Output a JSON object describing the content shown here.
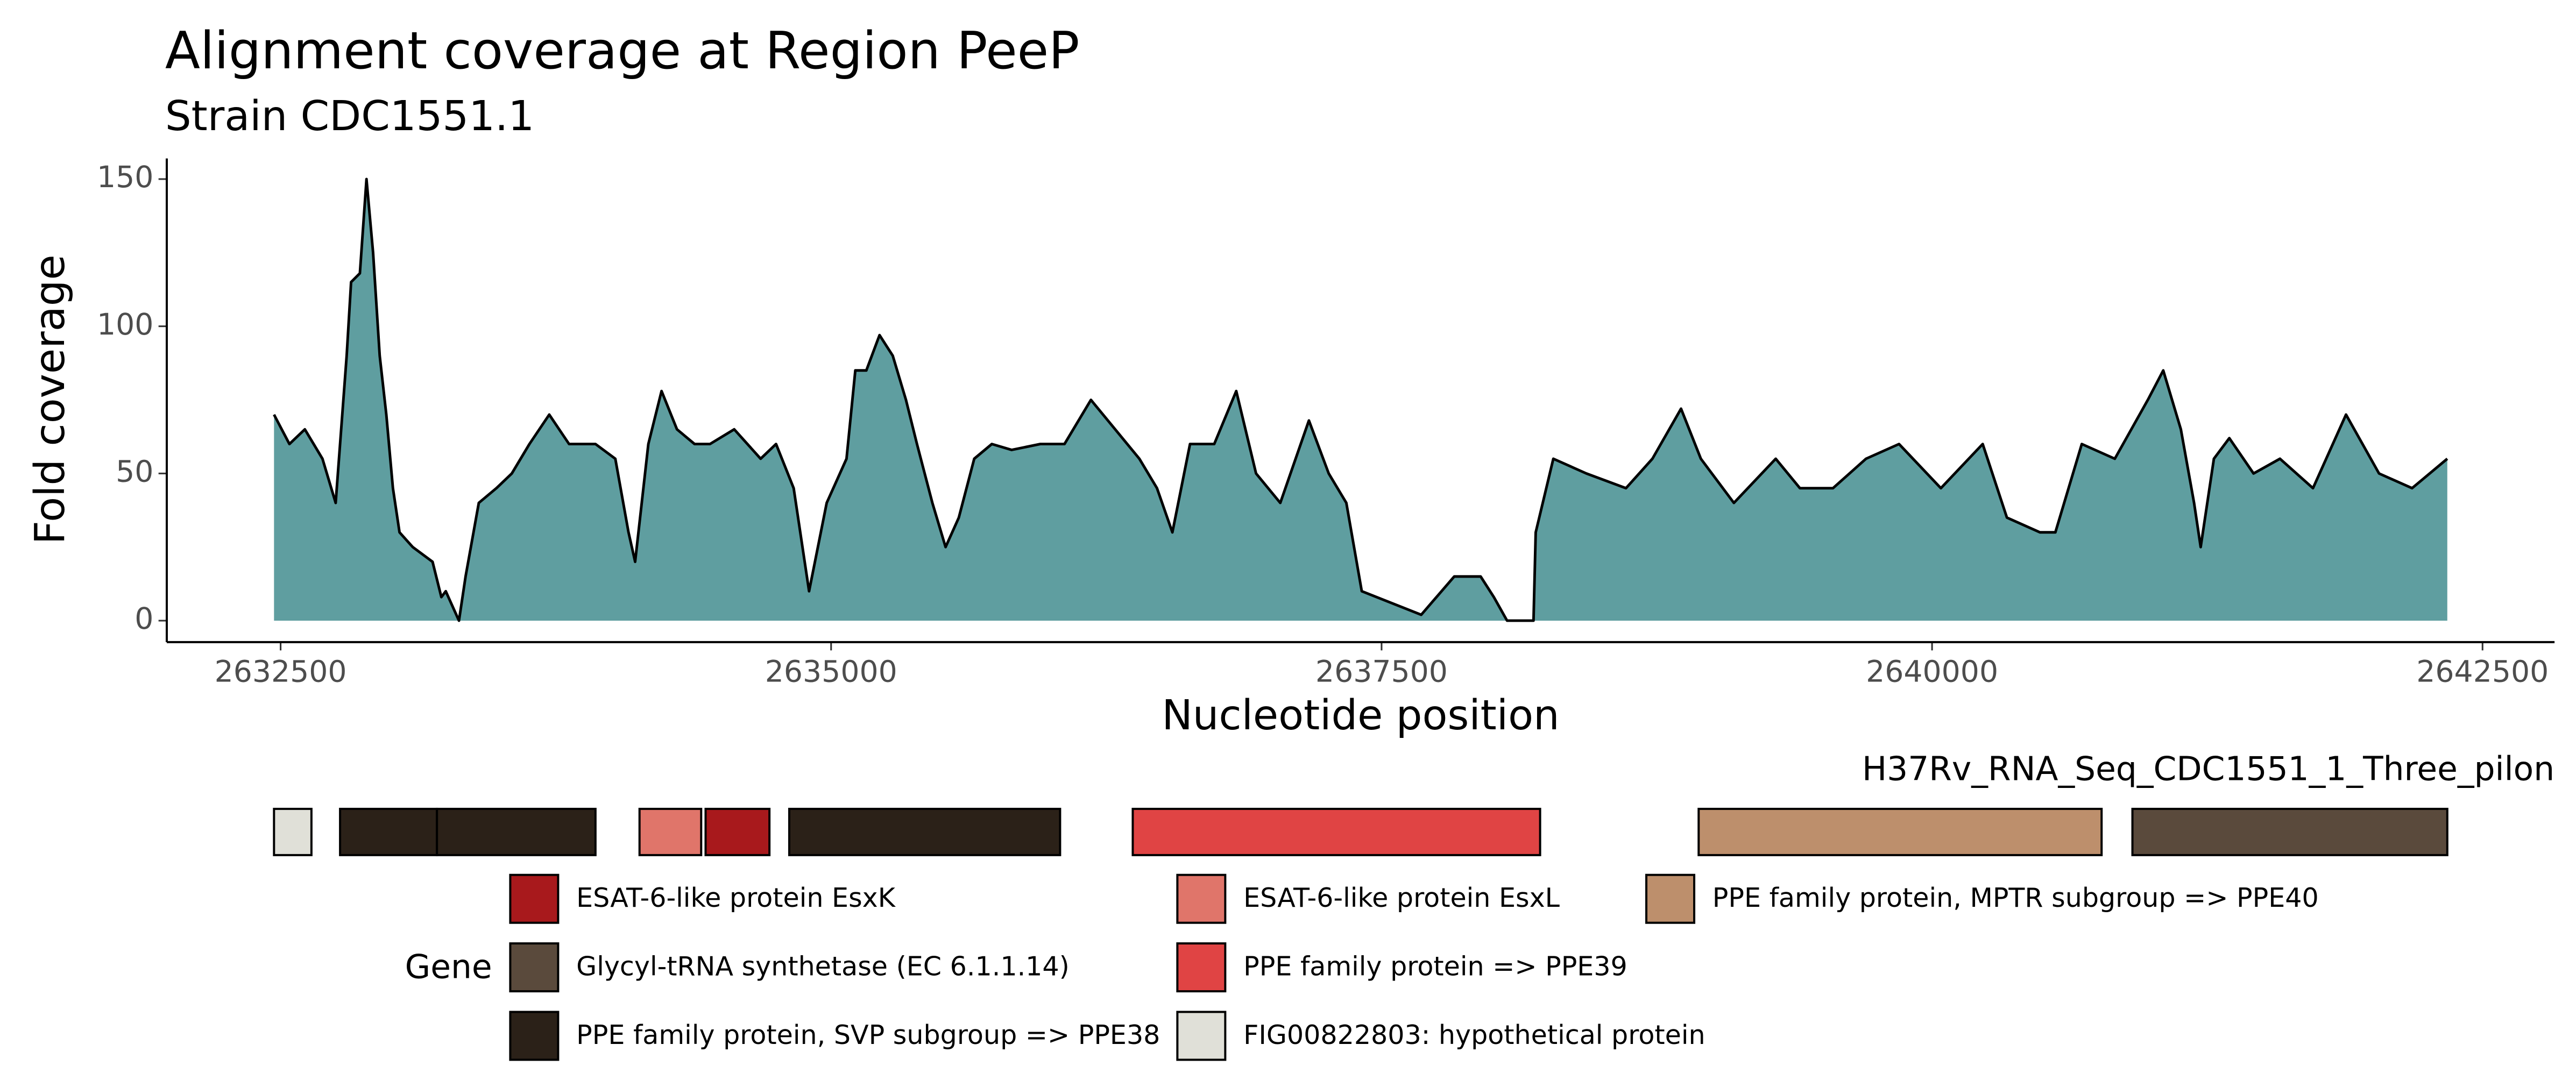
{
  "chart_data": [
    {
      "type": "area",
      "title": "Alignment coverage at Region PeeP",
      "subtitle": "Strain CDC1551.1",
      "x_label": "Nucleotide position",
      "y_label": "Fold coverage",
      "x": [
        2632470,
        2632540,
        2632610,
        2632690,
        2632750,
        2632800,
        2632820,
        2632860,
        2632890,
        2632920,
        2632950,
        2632980,
        2633010,
        2633040,
        2633100,
        2633190,
        2633230,
        2633250,
        2633310,
        2633340,
        2633400,
        2633480,
        2633550,
        2633630,
        2633720,
        2633810,
        2633930,
        2634020,
        2634080,
        2634110,
        2634170,
        2634230,
        2634300,
        2634380,
        2634450,
        2634560,
        2634680,
        2634750,
        2634830,
        2634900,
        2634980,
        2635070,
        2635110,
        2635160,
        2635220,
        2635280,
        2635340,
        2635390,
        2635460,
        2635520,
        2635580,
        2635650,
        2635730,
        2635820,
        2635950,
        2636060,
        2636180,
        2636290,
        2636400,
        2636480,
        2636550,
        2636630,
        2636740,
        2636840,
        2636930,
        2637040,
        2637170,
        2637260,
        2637340,
        2637410,
        2637680,
        2637830,
        2637950,
        2638010,
        2638070,
        2638190,
        2638200,
        2638280,
        2638430,
        2638610,
        2638730,
        2638860,
        2638950,
        2639100,
        2639290,
        2639400,
        2639550,
        2639700,
        2639850,
        2640040,
        2640230,
        2640340,
        2640490,
        2640560,
        2640680,
        2640830,
        2640980,
        2641050,
        2641130,
        2641190,
        2641220,
        2641280,
        2641350,
        2641460,
        2641580,
        2641730,
        2641880,
        2642030,
        2642180,
        2642340
      ],
      "series": [
        {
          "color": "#5f9ea0",
          "values": [
            70,
            60,
            65,
            55,
            40,
            90,
            115,
            118,
            150,
            125,
            90,
            70,
            45,
            30,
            25,
            20,
            8,
            10,
            0,
            15,
            40,
            45,
            50,
            60,
            70,
            60,
            60,
            55,
            30,
            20,
            60,
            78,
            65,
            60,
            60,
            65,
            55,
            60,
            45,
            10,
            40,
            55,
            85,
            85,
            97,
            90,
            75,
            60,
            40,
            25,
            35,
            55,
            60,
            58,
            60,
            60,
            75,
            65,
            55,
            45,
            30,
            60,
            60,
            78,
            50,
            40,
            68,
            50,
            40,
            10,
            2,
            15,
            15,
            8,
            0,
            0,
            30,
            55,
            50,
            45,
            55,
            72,
            55,
            40,
            55,
            45,
            45,
            55,
            60,
            45,
            60,
            35,
            30,
            30,
            60,
            55,
            75,
            85,
            65,
            40,
            25,
            55,
            62,
            50,
            55,
            45,
            70,
            50,
            45,
            55
          ]
        }
      ],
      "xlim": [
        2631983,
        2642827
      ],
      "ylim": [
        -7.3,
        157
      ],
      "xticks": [
        2632500,
        2635000,
        2637500,
        2640000,
        2642500
      ],
      "yticks": [
        0,
        50,
        100,
        150
      ]
    },
    {
      "type": "gene-track",
      "title": "H37Rv_RNA_Seq_CDC1551_1_Three_pilon",
      "legend_title": "Gene",
      "xlim": [
        2631983,
        2642827
      ],
      "series": [
        {
          "name": "ESAT-6-like protein EsxK",
          "color": "#a8191c",
          "spans": [
            [
              2634430,
              2634720
            ]
          ]
        },
        {
          "name": "Glycyl-tRNA synthetase (EC 6.1.1.14)",
          "color": "#5a4a3c",
          "spans": [
            [
              2640910,
              2642340
            ]
          ]
        },
        {
          "name": "PPE family protein, SVP subgroup => PPE38",
          "color": "#2b2118",
          "spans": [
            [
              2632770,
              2633210
            ],
            [
              2633210,
              2633930
            ],
            [
              2634810,
              2636040
            ]
          ]
        },
        {
          "name": "ESAT-6-like protein EsxL",
          "color": "#e0756a",
          "spans": [
            [
              2634130,
              2634410
            ]
          ]
        },
        {
          "name": "PPE family protein => PPE39",
          "color": "#e04444",
          "spans": [
            [
              2636370,
              2638220
            ]
          ]
        },
        {
          "name": "FIG00822803: hypothetical protein",
          "color": "#e0e0d8",
          "spans": [
            [
              2632470,
              2632640
            ]
          ]
        },
        {
          "name": "PPE family protein, MPTR subgroup => PPE40",
          "color": "#bd8f6c",
          "spans": [
            [
              2638940,
              2640770
            ]
          ]
        }
      ]
    }
  ]
}
